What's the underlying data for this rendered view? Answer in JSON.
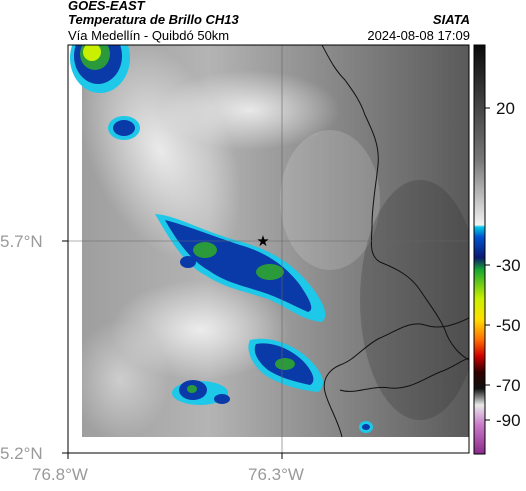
{
  "header": {
    "satellite": "GOES-EAST",
    "product": "Temperatura de Brillo CH13",
    "region": "Vía Medellín - Quibdó 50km",
    "agency": "SIATA",
    "datetime": "2024-08-08 17:09"
  },
  "axes": {
    "y_ticks": [
      "5.7°N",
      "5.2°N"
    ],
    "x_ticks": [
      "76.8°W",
      "76.3°W"
    ]
  },
  "colorbar": {
    "labels": [
      "20",
      "-30",
      "-50",
      "-70",
      "-90"
    ]
  },
  "colors": {
    "cloud_blue": "#0a3aa8",
    "cloud_cyan": "#1ec8e8",
    "cloud_green": "#2a9a3a",
    "cloud_lime": "#c8f000",
    "border": "#111111"
  }
}
